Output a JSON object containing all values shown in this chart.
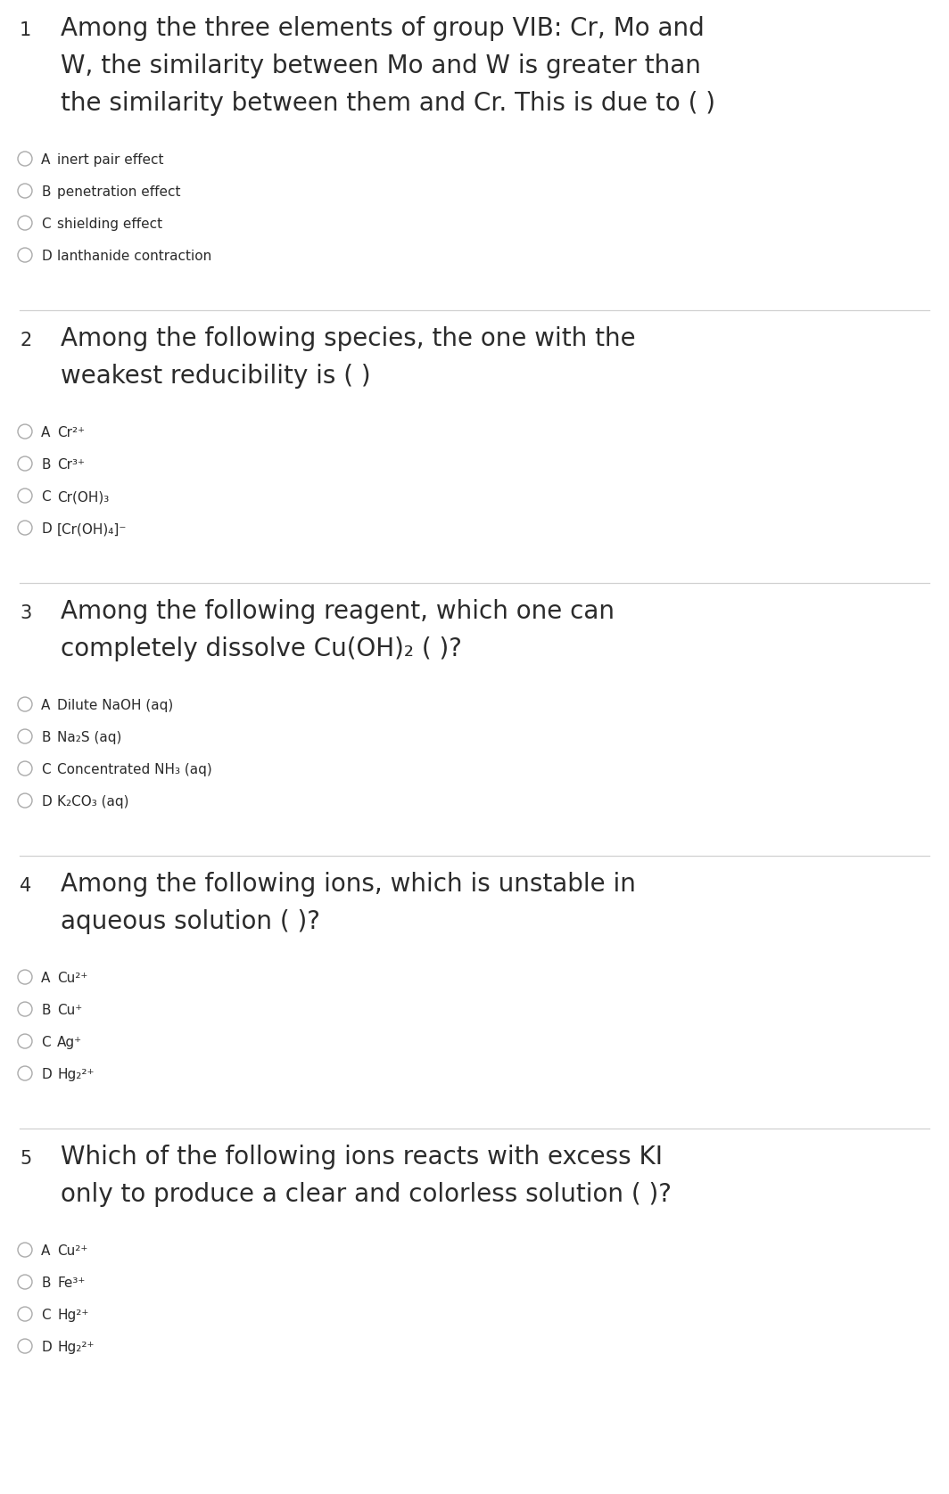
{
  "bg_color": "#ffffff",
  "text_color": "#2b2b2b",
  "circle_color": "#aaaaaa",
  "line_color": "#d0d0d0",
  "q_fontsize": 20,
  "opt_fontsize": 11,
  "num_fontsize": 15,
  "questions": [
    {
      "number": "1",
      "question_lines": [
        "Among the three elements of group VIB: Cr, Mo and",
        "W, the similarity between Mo and W is greater than",
        "the similarity between them and Cr. This is due to ( )"
      ],
      "options": [
        {
          "letter": "A",
          "text": "inert pair effect"
        },
        {
          "letter": "B",
          "text": "penetration effect"
        },
        {
          "letter": "C",
          "text": "shielding effect"
        },
        {
          "letter": "D",
          "text": "lanthanide contraction"
        }
      ]
    },
    {
      "number": "2",
      "question_lines": [
        "Among the following species, the one with the",
        "weakest reducibility is ( )"
      ],
      "options": [
        {
          "letter": "A",
          "text": "Cr²⁺"
        },
        {
          "letter": "B",
          "text": "Cr³⁺"
        },
        {
          "letter": "C",
          "text": "Cr(OH)₃"
        },
        {
          "letter": "D",
          "text": "[Cr(OH)₄]⁻"
        }
      ]
    },
    {
      "number": "3",
      "question_lines": [
        "Among the following reagent, which one can",
        "completely dissolve Cu(OH)₂ ( )?"
      ],
      "options": [
        {
          "letter": "A",
          "text": "Dilute NaOH (aq)"
        },
        {
          "letter": "B",
          "text": "Na₂S (aq)"
        },
        {
          "letter": "C",
          "text": "Concentrated NH₃ (aq)"
        },
        {
          "letter": "D",
          "text": "K₂CO₃ (aq)"
        }
      ]
    },
    {
      "number": "4",
      "question_lines": [
        "Among the following ions, which is unstable in",
        "aqueous solution ( )?"
      ],
      "options": [
        {
          "letter": "A",
          "text": "Cu²⁺"
        },
        {
          "letter": "B",
          "text": "Cu⁺"
        },
        {
          "letter": "C",
          "text": "Ag⁺"
        },
        {
          "letter": "D",
          "text": "Hg₂²⁺"
        }
      ]
    },
    {
      "number": "5",
      "question_lines": [
        "Which of the following ions reacts with excess KI",
        "only to produce a clear and colorless solution ( )?"
      ],
      "options": [
        {
          "letter": "A",
          "text": "Cu²⁺"
        },
        {
          "letter": "B",
          "text": "Fe³⁺"
        },
        {
          "letter": "C",
          "text": "Hg²⁺"
        },
        {
          "letter": "D",
          "text": "Hg₂²⁺"
        }
      ]
    }
  ]
}
